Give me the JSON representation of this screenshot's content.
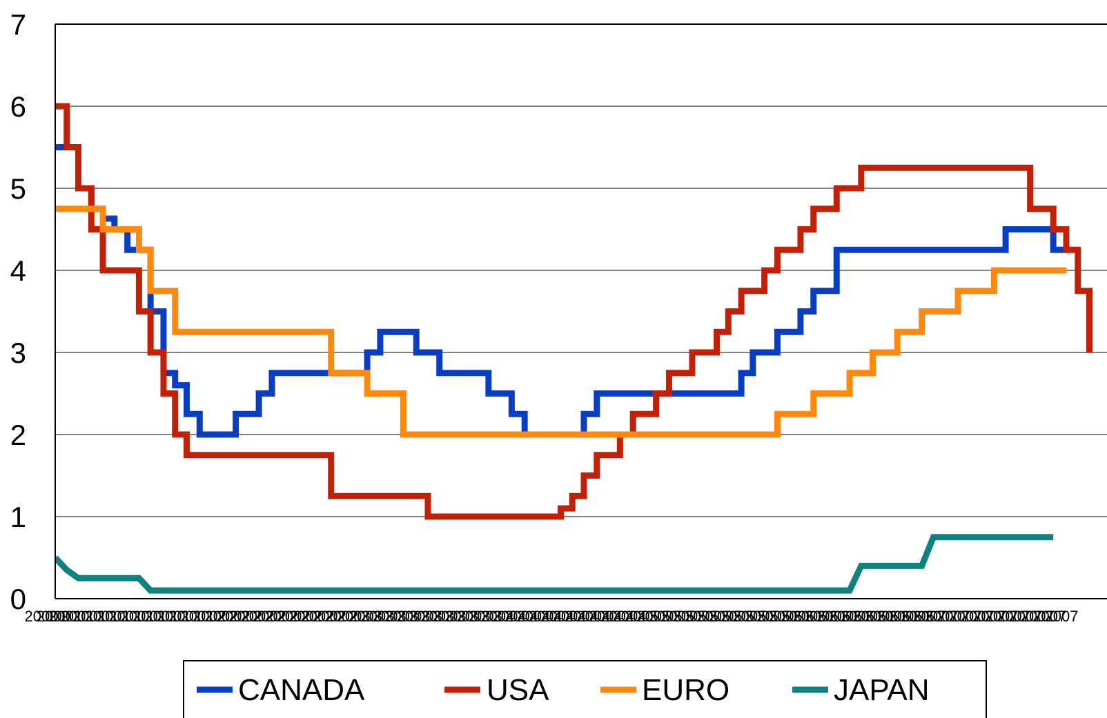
{
  "chart_data": {
    "type": "line",
    "step": true,
    "title": "",
    "xlabel": "",
    "ylabel": "",
    "ylim": [
      0,
      7
    ],
    "yticks": [
      0,
      1,
      2,
      3,
      4,
      5,
      6,
      7
    ],
    "grid": "horizontal",
    "xlim": [
      2000.92,
      2007.92
    ],
    "x_tick_labels": [
      "2000",
      "2000",
      "2001",
      "2001",
      "2001",
      "2001",
      "2001",
      "2001",
      "2001",
      "2001",
      "2001",
      "2001",
      "2001",
      "2001",
      "2002",
      "2002",
      "2002",
      "2002",
      "2002",
      "2002",
      "2002",
      "2002",
      "2002",
      "2002",
      "2002",
      "2002",
      "2003",
      "2003",
      "2003",
      "2003",
      "2003",
      "2003",
      "2003",
      "2003",
      "2003",
      "2003",
      "2003",
      "2003",
      "2004",
      "2004",
      "2004",
      "2004",
      "2004",
      "2004",
      "2004",
      "2004",
      "2004",
      "2004",
      "2004",
      "2004",
      "2005",
      "2005",
      "2005",
      "2005",
      "2005",
      "2005",
      "2005",
      "2005",
      "2005",
      "2005",
      "2005",
      "2005",
      "2006",
      "2006",
      "2006",
      "2006",
      "2006",
      "2006",
      "2006",
      "2006",
      "2006",
      "2006",
      "2006",
      "2006",
      "2007",
      "2007",
      "2007",
      "2007",
      "2007",
      "2007",
      "2007",
      "2007",
      "2007",
      "2007",
      "2007",
      "2007"
    ],
    "legend_position": "bottom",
    "series": [
      {
        "name": "CANADA",
        "color": "#0a3ec2",
        "points": [
          [
            2000.92,
            5.5
          ],
          [
            2001.0,
            5.5
          ],
          [
            2001.08,
            5.0
          ],
          [
            2001.17,
            4.75
          ],
          [
            2001.25,
            4.63
          ],
          [
            2001.33,
            4.5
          ],
          [
            2001.42,
            4.25
          ],
          [
            2001.58,
            3.5
          ],
          [
            2001.67,
            2.75
          ],
          [
            2001.75,
            2.6
          ],
          [
            2001.83,
            2.25
          ],
          [
            2001.92,
            2.0
          ],
          [
            2002.17,
            2.25
          ],
          [
            2002.33,
            2.5
          ],
          [
            2002.42,
            2.75
          ],
          [
            2002.83,
            2.75
          ],
          [
            2003.08,
            3.0
          ],
          [
            2003.17,
            3.25
          ],
          [
            2003.42,
            3.0
          ],
          [
            2003.58,
            2.75
          ],
          [
            2003.92,
            2.5
          ],
          [
            2004.08,
            2.25
          ],
          [
            2004.17,
            2.0
          ],
          [
            2004.58,
            2.25
          ],
          [
            2004.67,
            2.5
          ],
          [
            2005.67,
            2.75
          ],
          [
            2005.75,
            3.0
          ],
          [
            2005.92,
            3.25
          ],
          [
            2006.08,
            3.5
          ],
          [
            2006.17,
            3.75
          ],
          [
            2006.33,
            4.25
          ],
          [
            2007.5,
            4.5
          ],
          [
            2007.83,
            4.25
          ],
          [
            2007.92,
            4.25
          ]
        ]
      },
      {
        "name": "USA",
        "color": "#c22007",
        "points": [
          [
            2000.92,
            6.0
          ],
          [
            2001.0,
            5.5
          ],
          [
            2001.08,
            5.0
          ],
          [
            2001.17,
            4.5
          ],
          [
            2001.25,
            4.0
          ],
          [
            2001.5,
            3.5
          ],
          [
            2001.58,
            3.0
          ],
          [
            2001.67,
            2.5
          ],
          [
            2001.75,
            2.0
          ],
          [
            2001.83,
            1.75
          ],
          [
            2002.83,
            1.25
          ],
          [
            2003.5,
            1.0
          ],
          [
            2004.42,
            1.1
          ],
          [
            2004.5,
            1.25
          ],
          [
            2004.58,
            1.5
          ],
          [
            2004.67,
            1.75
          ],
          [
            2004.83,
            2.0
          ],
          [
            2004.92,
            2.25
          ],
          [
            2005.08,
            2.5
          ],
          [
            2005.17,
            2.75
          ],
          [
            2005.33,
            3.0
          ],
          [
            2005.5,
            3.25
          ],
          [
            2005.58,
            3.5
          ],
          [
            2005.67,
            3.75
          ],
          [
            2005.83,
            4.0
          ],
          [
            2005.92,
            4.25
          ],
          [
            2006.08,
            4.5
          ],
          [
            2006.17,
            4.75
          ],
          [
            2006.33,
            5.0
          ],
          [
            2006.5,
            5.25
          ],
          [
            2007.67,
            4.75
          ],
          [
            2007.83,
            4.5
          ],
          [
            2007.92,
            4.25
          ],
          [
            2008.0,
            3.75
          ],
          [
            2008.08,
            3.0
          ]
        ]
      },
      {
        "name": "EURO",
        "color": "#ff880e",
        "points": [
          [
            2000.92,
            4.75
          ],
          [
            2001.25,
            4.5
          ],
          [
            2001.5,
            4.25
          ],
          [
            2001.58,
            3.75
          ],
          [
            2001.75,
            3.25
          ],
          [
            2002.83,
            2.75
          ],
          [
            2003.08,
            2.5
          ],
          [
            2003.33,
            2.0
          ],
          [
            2005.92,
            2.25
          ],
          [
            2006.17,
            2.5
          ],
          [
            2006.42,
            2.75
          ],
          [
            2006.58,
            3.0
          ],
          [
            2006.75,
            3.25
          ],
          [
            2006.92,
            3.5
          ],
          [
            2007.17,
            3.75
          ],
          [
            2007.42,
            4.0
          ],
          [
            2007.92,
            4.0
          ]
        ]
      },
      {
        "name": "JAPAN",
        "color": "#11817d",
        "points": [
          [
            2000.92,
            0.5
          ],
          [
            2001.0,
            0.35
          ],
          [
            2001.08,
            0.25
          ],
          [
            2001.5,
            0.25
          ],
          [
            2001.58,
            0.1
          ],
          [
            2006.42,
            0.1
          ],
          [
            2006.5,
            0.4
          ],
          [
            2006.92,
            0.4
          ],
          [
            2007.0,
            0.75
          ],
          [
            2007.83,
            0.75
          ]
        ]
      }
    ]
  }
}
